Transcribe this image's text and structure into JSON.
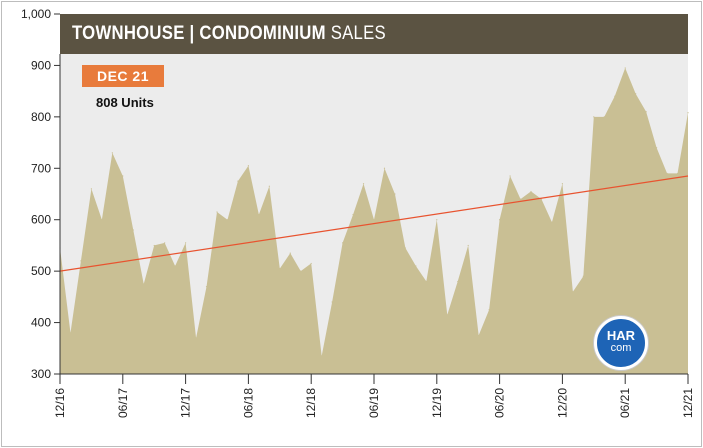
{
  "colors": {
    "area": "#c9bf94",
    "trend": "#e8532f",
    "title_bar": "#5b5342",
    "badge": "#e87b3c",
    "logo": "#1e64b6"
  },
  "title": {
    "bold_part": "TOWNHOUSE | CONDOMINIUM",
    "light_part": " SALES"
  },
  "badge": {
    "label": "DEC 21"
  },
  "units_label": "808 Units",
  "logo": {
    "line1": "HAR",
    "line2": "com"
  },
  "chart_data": {
    "type": "area",
    "ylim": [
      300,
      1000
    ],
    "yticks": [
      300,
      400,
      500,
      600,
      700,
      800,
      900,
      1000
    ],
    "ytick_labels": [
      "300",
      "400",
      "500",
      "600",
      "700",
      "800",
      "900",
      "1,000"
    ],
    "x_start": "12/16",
    "x_end": "12/21",
    "xtick_labels": [
      "12/16",
      "06/17",
      "12/17",
      "06/18",
      "12/18",
      "06/19",
      "12/19",
      "06/20",
      "12/20",
      "06/21",
      "12/21"
    ],
    "xtick_month_index": [
      0,
      6,
      12,
      18,
      24,
      30,
      36,
      42,
      48,
      54,
      60
    ],
    "values": [
      545,
      380,
      520,
      660,
      600,
      730,
      685,
      580,
      475,
      550,
      555,
      510,
      555,
      370,
      470,
      615,
      600,
      675,
      705,
      610,
      665,
      505,
      535,
      500,
      515,
      335,
      440,
      555,
      610,
      670,
      600,
      700,
      650,
      545,
      510,
      480,
      600,
      415,
      480,
      550,
      375,
      425,
      600,
      685,
      640,
      655,
      640,
      595,
      670,
      460,
      490,
      800,
      800,
      840,
      895,
      845,
      810,
      740,
      690,
      690,
      808
    ],
    "trend_line": {
      "start": 500,
      "end": 685
    },
    "grid": false
  }
}
